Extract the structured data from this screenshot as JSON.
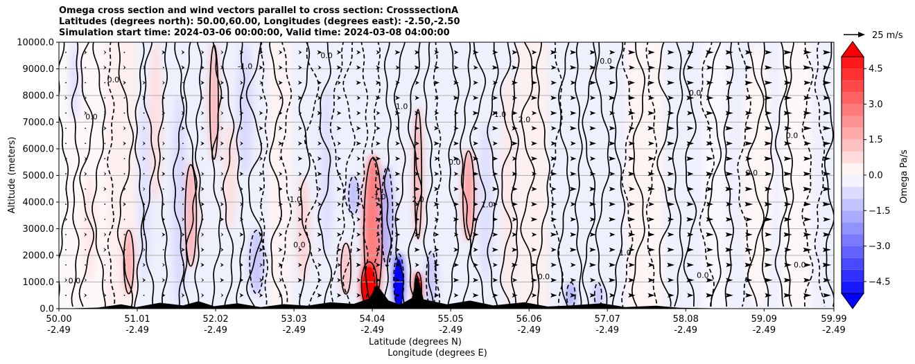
{
  "chart_data": {
    "type": "heatmap",
    "title_lines": [
      "Omega cross section and wind vectors parallel to cross section: CrosssectionA",
      "Latitudes (degrees north): 50.00,60.00, Longitudes (degrees east): -2.50,-2.50",
      "Simulation start time: 2024-03-06 00:00:00, Valid time: 2024-03-08 04:00:00"
    ],
    "ylabel": "Altitude (meters)",
    "xlabel_lat": "Latitude (degrees N)",
    "xlabel_lon": "Longitude (degrees E)",
    "x_range": [
      50.0,
      59.99
    ],
    "y_range": [
      0.0,
      10000.0
    ],
    "x_ticks": [
      {
        "lat": "50.00",
        "lon": "-2.49",
        "value": 50.0
      },
      {
        "lat": "51.01",
        "lon": "-2.49",
        "value": 51.01
      },
      {
        "lat": "52.02",
        "lon": "-2.49",
        "value": 52.02
      },
      {
        "lat": "53.03",
        "lon": "-2.49",
        "value": 53.03
      },
      {
        "lat": "54.04",
        "lon": "-2.49",
        "value": 54.04
      },
      {
        "lat": "55.05",
        "lon": "-2.49",
        "value": 55.05
      },
      {
        "lat": "56.06",
        "lon": "-2.49",
        "value": 56.06
      },
      {
        "lat": "57.07",
        "lon": "-2.49",
        "value": 57.07
      },
      {
        "lat": "58.08",
        "lon": "-2.49",
        "value": 58.08
      },
      {
        "lat": "59.09",
        "lon": "-2.49",
        "value": 59.09
      },
      {
        "lat": "59.99",
        "lon": "-2.49",
        "value": 59.99
      }
    ],
    "y_ticks": [
      {
        "label": "0.0",
        "value": 0
      },
      {
        "label": "1000.0",
        "value": 1000
      },
      {
        "label": "2000.0",
        "value": 2000
      },
      {
        "label": "3000.0",
        "value": 3000
      },
      {
        "label": "4000.0",
        "value": 4000
      },
      {
        "label": "5000.0",
        "value": 5000
      },
      {
        "label": "6000.0",
        "value": 6000
      },
      {
        "label": "7000.0",
        "value": 7000
      },
      {
        "label": "8000.0",
        "value": 8000
      },
      {
        "label": "9000.0",
        "value": 9000
      },
      {
        "label": "10000.0",
        "value": 10000
      }
    ],
    "grid": "horizontal",
    "colorbar": {
      "label": "Omega Pa/s",
      "range": [
        -5.0,
        5.0
      ],
      "extend": "both",
      "ticks": [
        {
          "label": "4.5",
          "value": 4.5
        },
        {
          "label": "3.0",
          "value": 3.0
        },
        {
          "label": "1.5",
          "value": 1.5
        },
        {
          "label": "0.0",
          "value": 0.0
        },
        {
          "label": "−1.5",
          "value": -1.5
        },
        {
          "label": "−3.0",
          "value": -3.0
        },
        {
          "label": "−4.5",
          "value": -4.5
        }
      ],
      "negative_color": "#0000ff",
      "positive_color": "#ff0000"
    },
    "vector_key": {
      "label": "25 m/s",
      "speed": 25
    },
    "shaded_features": [
      {
        "lat": 54.05,
        "alt_bottom": 0,
        "alt_top": 5800,
        "width": 0.26,
        "omega": 2.8
      },
      {
        "lat": 54.0,
        "alt_bottom": 0,
        "alt_top": 1800,
        "width": 0.22,
        "omega": 4.6
      },
      {
        "lat": 54.38,
        "alt_bottom": 0,
        "alt_top": 2100,
        "width": 0.14,
        "omega": -4.0
      },
      {
        "lat": 54.23,
        "alt_bottom": 1500,
        "alt_top": 5400,
        "width": 0.16,
        "omega": -1.6
      },
      {
        "lat": 54.63,
        "alt_bottom": 0,
        "alt_top": 1400,
        "width": 0.1,
        "omega": 4.5
      },
      {
        "lat": 54.63,
        "alt_bottom": 2500,
        "alt_top": 7600,
        "width": 0.1,
        "omega": 1.8
      },
      {
        "lat": 54.8,
        "alt_bottom": 0,
        "alt_top": 2200,
        "width": 0.14,
        "omega": -1.2
      },
      {
        "lat": 55.28,
        "alt_bottom": 2500,
        "alt_top": 6000,
        "width": 0.16,
        "omega": 2.0
      },
      {
        "lat": 55.5,
        "alt_bottom": 1000,
        "alt_top": 7000,
        "width": 0.18,
        "omega": -0.7
      },
      {
        "lat": 55.78,
        "alt_bottom": 0,
        "alt_top": 9000,
        "width": 0.16,
        "omega": 0.5
      },
      {
        "lat": 51.7,
        "alt_bottom": 1500,
        "alt_top": 5500,
        "width": 0.16,
        "omega": 1.6
      },
      {
        "lat": 51.55,
        "alt_bottom": 0,
        "alt_top": 8000,
        "width": 0.18,
        "omega": -0.8
      },
      {
        "lat": 52.0,
        "alt_bottom": 5500,
        "alt_top": 10000,
        "width": 0.12,
        "omega": 1.6
      },
      {
        "lat": 52.2,
        "alt_bottom": 3000,
        "alt_top": 7000,
        "width": 0.16,
        "omega": 0.7
      },
      {
        "lat": 52.55,
        "alt_bottom": 500,
        "alt_top": 3000,
        "width": 0.2,
        "omega": -1.2
      },
      {
        "lat": 52.4,
        "alt_bottom": 5000,
        "alt_top": 10000,
        "width": 0.2,
        "omega": -0.8
      },
      {
        "lat": 50.9,
        "alt_bottom": 500,
        "alt_top": 3000,
        "width": 0.14,
        "omega": 1.8
      },
      {
        "lat": 51.1,
        "alt_bottom": 1000,
        "alt_top": 8000,
        "width": 0.18,
        "omega": -0.6
      },
      {
        "lat": 51.25,
        "alt_bottom": 4000,
        "alt_top": 10000,
        "width": 0.16,
        "omega": 0.7
      },
      {
        "lat": 53.15,
        "alt_bottom": 1000,
        "alt_top": 5000,
        "width": 0.16,
        "omega": 0.9
      },
      {
        "lat": 53.45,
        "alt_bottom": 2000,
        "alt_top": 8500,
        "width": 0.16,
        "omega": -0.7
      },
      {
        "lat": 53.7,
        "alt_bottom": 500,
        "alt_top": 2500,
        "width": 0.14,
        "omega": 1.3
      },
      {
        "lat": 53.8,
        "alt_bottom": 3500,
        "alt_top": 5000,
        "width": 0.14,
        "omega": -1.4
      },
      {
        "lat": 50.4,
        "alt_bottom": 1000,
        "alt_top": 5000,
        "width": 0.2,
        "omega": 0.5
      },
      {
        "lat": 50.2,
        "alt_bottom": 7000,
        "alt_top": 10000,
        "width": 0.14,
        "omega": -0.7
      },
      {
        "lat": 56.6,
        "alt_bottom": 0,
        "alt_top": 1000,
        "width": 0.12,
        "omega": -1.8
      },
      {
        "lat": 56.95,
        "alt_bottom": 0,
        "alt_top": 1000,
        "width": 0.1,
        "omega": -1.3
      },
      {
        "lat": 57.5,
        "alt_bottom": 0,
        "alt_top": 10000,
        "width": 0.25,
        "omega": 0.25
      },
      {
        "lat": 59.0,
        "alt_bottom": 0,
        "alt_top": 10000,
        "width": 0.4,
        "omega": 0.2
      }
    ],
    "contour_labels": [
      {
        "text": "0.0",
        "lat": 50.42,
        "alt": 7100
      },
      {
        "text": "0.0",
        "lat": 50.7,
        "alt": 8500
      },
      {
        "text": "0.0",
        "lat": 50.2,
        "alt": 950
      },
      {
        "text": "-1.0",
        "lat": 52.4,
        "alt": 9000
      },
      {
        "text": "1.0",
        "lat": 53.05,
        "alt": 4000
      },
      {
        "text": "0.0",
        "lat": 53.1,
        "alt": 2300
      },
      {
        "text": "0.0",
        "lat": 53.45,
        "alt": 9400
      },
      {
        "text": "-1.0",
        "lat": 54.12,
        "alt": 4100
      },
      {
        "text": "1.0",
        "lat": 54.42,
        "alt": 7500
      },
      {
        "text": "2.0",
        "lat": 54.63,
        "alt": 4000
      },
      {
        "text": "0.0",
        "lat": 55.1,
        "alt": 5400
      },
      {
        "text": "-1.0",
        "lat": 55.67,
        "alt": 7200
      },
      {
        "text": "1.0",
        "lat": 55.52,
        "alt": 3800
      },
      {
        "text": "2.0",
        "lat": 56.0,
        "alt": 7000
      },
      {
        "text": "0.0",
        "lat": 56.25,
        "alt": 1100
      },
      {
        "text": "0.0",
        "lat": 58.3,
        "alt": 1150
      },
      {
        "text": "0.0",
        "lat": 59.55,
        "alt": 1550
      },
      {
        "text": "0.0",
        "lat": 58.93,
        "alt": 5000
      },
      {
        "text": "1.0",
        "lat": 57.3,
        "alt": 2000
      },
      {
        "text": "0.0",
        "lat": 57.05,
        "alt": 9200
      },
      {
        "text": "0.0",
        "lat": 58.2,
        "alt": 8000
      },
      {
        "text": "0.0",
        "lat": 59.45,
        "alt": 6400
      }
    ]
  }
}
